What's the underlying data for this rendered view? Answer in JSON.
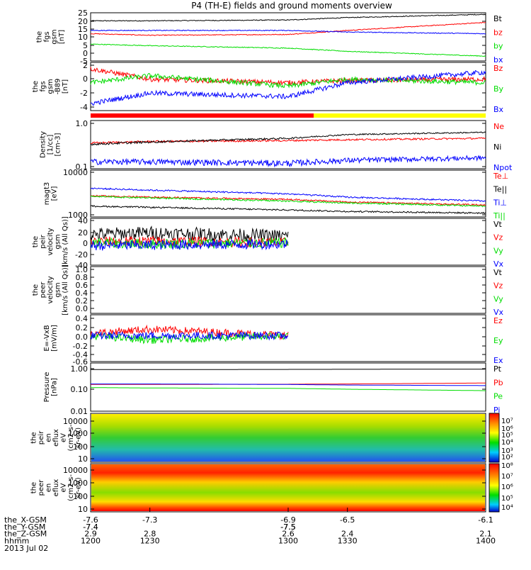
{
  "title": "P4 (TH-E) fields and ground moments overview",
  "colors": {
    "black": "#000000",
    "red": "#ff0000",
    "green": "#00dd00",
    "blue": "#0000ff",
    "yellow": "#ffff00"
  },
  "chart_data": [
    {
      "id": "fgs-gsm",
      "type": "line",
      "ylabel": [
        "the",
        "fgs",
        "gsm",
        "[nT]"
      ],
      "y_ticks": [
        "25",
        "20",
        "15",
        "10",
        "5",
        "0",
        "-5"
      ],
      "x": [
        1200,
        1230,
        1300,
        1330,
        1400
      ],
      "series": [
        {
          "name": "Bt",
          "color": "black",
          "values": [
            20,
            20,
            20.5,
            22,
            24
          ]
        },
        {
          "name": "bz",
          "color": "red",
          "values": [
            12,
            11,
            11.5,
            14,
            19
          ]
        },
        {
          "name": "by",
          "color": "green",
          "values": [
            5.5,
            4.5,
            3,
            1,
            -2
          ]
        },
        {
          "name": "bx",
          "color": "blue",
          "values": [
            14,
            14,
            14,
            13,
            12
          ]
        }
      ]
    },
    {
      "id": "fgs-gsm-b89",
      "type": "line",
      "ylabel": [
        "the",
        "fgs",
        "gsm",
        "-B89",
        "[nT]"
      ],
      "y_ticks": [
        "2",
        "0",
        "-2",
        "-4"
      ],
      "x": [
        1200,
        1230,
        1300,
        1330,
        1400
      ],
      "series": [
        {
          "name": "Bz",
          "color": "red",
          "values": [
            1.5,
            0,
            -0.5,
            -0.2,
            0
          ]
        },
        {
          "name": "By",
          "color": "green",
          "values": [
            -0.5,
            0.5,
            -1,
            0,
            -0.5
          ]
        },
        {
          "name": "Bx",
          "color": "blue",
          "values": [
            -3.5,
            -2,
            -2.5,
            -0.5,
            1
          ]
        }
      ]
    },
    {
      "id": "density",
      "type": "line",
      "ylabel": [
        "Density",
        "[1/cc]",
        "[cm-3]"
      ],
      "y_ticks": [
        "1.0",
        "0.1"
      ],
      "x": [
        1200,
        1230,
        1300,
        1330,
        1400
      ],
      "series": [
        {
          "name": "Ne",
          "color": "red",
          "values": [
            0.35,
            0.38,
            0.4,
            0.42,
            0.45
          ]
        },
        {
          "name": "Ni",
          "color": "black",
          "values": [
            0.33,
            0.37,
            0.45,
            0.55,
            0.62
          ]
        },
        {
          "name": "Npot",
          "color": "blue",
          "values": [
            0.13,
            0.13,
            0.12,
            0.14,
            0.16
          ]
        }
      ]
    },
    {
      "id": "temperature",
      "type": "line",
      "ylabel": [
        "magt3",
        "[eV]"
      ],
      "y_ticks": [
        "10000",
        "1000"
      ],
      "x": [
        1200,
        1230,
        1300,
        1330,
        1400
      ],
      "series": [
        {
          "name": "Te⊥",
          "color": "red",
          "values": [
            2800,
            2600,
            2300,
            2000,
            1700
          ]
        },
        {
          "name": "Te||",
          "color": "black",
          "values": [
            1600,
            1500,
            1300,
            1200,
            1100
          ]
        },
        {
          "name": "Ti⊥",
          "color": "blue",
          "values": [
            4200,
            3800,
            3100,
            2600,
            2100
          ]
        },
        {
          "name": "Ti||",
          "color": "green",
          "values": [
            2700,
            2500,
            2100,
            1900,
            1600
          ]
        }
      ]
    },
    {
      "id": "peir-velocity",
      "type": "line",
      "ylabel": [
        "the",
        "peir",
        "velocity",
        "gsm",
        "[km/s (All Qs)]"
      ],
      "y_ticks": [
        "40",
        "20",
        "0",
        "-20",
        "-40"
      ],
      "x": [
        1200,
        1230,
        1300
      ],
      "series": [
        {
          "name": "Vt",
          "color": "black",
          "values": [
            15,
            18,
            12
          ]
        },
        {
          "name": "Vz",
          "color": "red",
          "values": [
            2,
            3,
            0
          ]
        },
        {
          "name": "Vy",
          "color": "green",
          "values": [
            0,
            -2,
            0
          ]
        },
        {
          "name": "Vx",
          "color": "blue",
          "values": [
            -5,
            -4,
            -2
          ]
        }
      ]
    },
    {
      "id": "peer-velocity",
      "type": "line",
      "ylabel": [
        "the",
        "peer",
        "velocity",
        "gsm",
        "[km/s (All Qs)]"
      ],
      "y_ticks": [
        "1.0",
        "0.8",
        "0.6",
        "0.4",
        "0.2",
        "0.0"
      ],
      "x": [],
      "series": [
        {
          "name": "Vt",
          "color": "black",
          "values": []
        },
        {
          "name": "Vz",
          "color": "red",
          "values": []
        },
        {
          "name": "Vy",
          "color": "green",
          "values": []
        },
        {
          "name": "Vx",
          "color": "blue",
          "values": []
        }
      ]
    },
    {
      "id": "e-vxb",
      "type": "line",
      "ylabel": [
        "E=-VxB",
        "[mV/m]"
      ],
      "y_ticks": [
        "0.4",
        "0.2",
        "0.0",
        "-0.2",
        "-0.4",
        "-0.6"
      ],
      "x": [
        1200,
        1230,
        1300
      ],
      "series": [
        {
          "name": "Ez",
          "color": "red",
          "values": [
            0.05,
            0.15,
            0.0
          ]
        },
        {
          "name": "Ey",
          "color": "green",
          "values": [
            0.0,
            -0.1,
            0.0
          ]
        },
        {
          "name": "Ex",
          "color": "blue",
          "values": [
            0.0,
            0.0,
            0.0
          ]
        }
      ]
    },
    {
      "id": "pressure",
      "type": "line",
      "ylabel": [
        "Pressure",
        "[nPa]"
      ],
      "y_ticks": [
        "1.00",
        "0.10",
        "0.01"
      ],
      "x": [
        1200,
        1230,
        1300,
        1330,
        1400
      ],
      "series": [
        {
          "name": "Pt",
          "color": "black",
          "values": [
            0.9,
            0.9,
            0.92,
            0.93,
            0.95
          ]
        },
        {
          "name": "Pb",
          "color": "red",
          "values": [
            0.17,
            0.17,
            0.175,
            0.18,
            0.2
          ]
        },
        {
          "name": "Pe",
          "color": "green",
          "values": [
            0.12,
            0.115,
            0.11,
            0.1,
            0.085
          ]
        },
        {
          "name": "Pi",
          "color": "blue",
          "values": [
            0.18,
            0.18,
            0.17,
            0.16,
            0.15
          ]
        }
      ]
    },
    {
      "id": "peir-en-eflux",
      "type": "heatmap",
      "ylabel": [
        "the",
        "peir",
        "en",
        "eflux",
        "eV",
        "(cm2-s-",
        "sr-eV)"
      ],
      "y_ticks": [
        "10000",
        "1000",
        "100",
        "10"
      ],
      "colorbar_ticks": [
        "10⁷",
        "10⁶",
        "10⁵",
        "10⁴",
        "10³",
        "10²"
      ]
    },
    {
      "id": "peer-en-eflux",
      "type": "heatmap",
      "ylabel": [
        "the",
        "peer",
        "en",
        "eflux",
        "eV",
        "(cm2-s-",
        "sr-eV)"
      ],
      "y_ticks": [
        "10000",
        "1000",
        "100",
        "10"
      ],
      "colorbar_ticks": [
        "10⁸",
        "10⁷",
        "10⁶",
        "10⁵",
        "10⁴"
      ]
    }
  ],
  "x_axis": {
    "rows": [
      {
        "label": "the_X-GSM",
        "values": [
          "-7.6",
          "-7.3",
          "-6.9",
          "-6.5",
          "-6.1"
        ]
      },
      {
        "label": "the_Y-GSM",
        "values": [
          "-7.4",
          "-7.4",
          "-7.5",
          "-7.5",
          "-7.5"
        ]
      },
      {
        "label": "the_Z-GSM",
        "values": [
          "2.9",
          "2.8",
          "2.6",
          "2.4",
          "2.1"
        ]
      },
      {
        "label": "hhmm",
        "values": [
          "1200",
          "1230",
          "1300",
          "1330",
          "1400"
        ]
      }
    ],
    "date": "2013 Jul 02"
  }
}
